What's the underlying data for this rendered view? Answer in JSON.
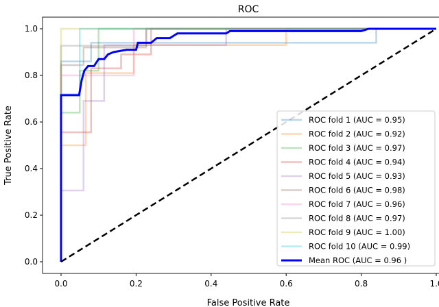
{
  "chart_data": {
    "type": "line",
    "title": "ROC",
    "xlabel": "False Positive Rate",
    "ylabel": "True Positive Rate",
    "xlim": [
      -0.05,
      1.05
    ],
    "ylim": [
      -0.05,
      1.05
    ],
    "xticks": [
      "0.0",
      "0.2",
      "0.4",
      "0.6",
      "0.8",
      "1.0"
    ],
    "yticks": [
      "0.0",
      "0.2",
      "0.4",
      "0.6",
      "0.8",
      "1.0"
    ],
    "grid": false,
    "legend_position": "lower-right",
    "series": [
      {
        "name": "ROC fold 1 (AUC = 0.95)",
        "color": "#1f77b4",
        "points": [
          [
            0,
            0
          ],
          [
            0,
            0.86
          ],
          [
            0.08,
            0.86
          ],
          [
            0.08,
            0.94
          ],
          [
            0.84,
            0.94
          ],
          [
            0.84,
            1
          ],
          [
            1,
            1
          ]
        ]
      },
      {
        "name": "ROC fold 2 (AUC = 0.92)",
        "color": "#ff7f0e",
        "points": [
          [
            0,
            0
          ],
          [
            0,
            0.5
          ],
          [
            0.066,
            0.5
          ],
          [
            0.066,
            0.81
          ],
          [
            0.194,
            0.81
          ],
          [
            0.194,
            0.93
          ],
          [
            0.6,
            0.93
          ],
          [
            0.6,
            1
          ],
          [
            1,
            1
          ]
        ]
      },
      {
        "name": "ROC fold 3 (AUC = 0.97)",
        "color": "#2ca02c",
        "points": [
          [
            0,
            0
          ],
          [
            0,
            0.64
          ],
          [
            0.05,
            0.64
          ],
          [
            0.05,
            0.82
          ],
          [
            0.1,
            0.82
          ],
          [
            0.1,
            1
          ],
          [
            1,
            1
          ]
        ]
      },
      {
        "name": "ROC fold 4 (AUC = 0.94)",
        "color": "#d62728",
        "points": [
          [
            0,
            0
          ],
          [
            0,
            0.556
          ],
          [
            0.08,
            0.556
          ],
          [
            0.08,
            0.83
          ],
          [
            0.16,
            0.83
          ],
          [
            0.16,
            0.89
          ],
          [
            0.24,
            0.89
          ],
          [
            0.24,
            1
          ],
          [
            1,
            1
          ]
        ]
      },
      {
        "name": "ROC fold 5 (AUC = 0.93)",
        "color": "#9467bd",
        "points": [
          [
            0,
            0
          ],
          [
            0,
            0.306
          ],
          [
            0.06,
            0.306
          ],
          [
            0.06,
            0.69
          ],
          [
            0.115,
            0.69
          ],
          [
            0.115,
            0.93
          ],
          [
            0.44,
            0.93
          ],
          [
            0.44,
            1
          ],
          [
            1,
            1
          ]
        ]
      },
      {
        "name": "ROC fold 6 (AUC = 0.98)",
        "color": "#8c564b",
        "points": [
          [
            0,
            0
          ],
          [
            0,
            0.844
          ],
          [
            0.06,
            0.844
          ],
          [
            0.06,
            0.92
          ],
          [
            0.227,
            0.92
          ],
          [
            0.227,
            1
          ],
          [
            1,
            1
          ]
        ]
      },
      {
        "name": "ROC fold 7 (AUC = 0.96)",
        "color": "#e377c2",
        "points": [
          [
            0,
            0
          ],
          [
            0,
            0.8
          ],
          [
            0.194,
            0.8
          ],
          [
            0.194,
            1
          ],
          [
            1,
            1
          ]
        ]
      },
      {
        "name": "ROC fold 8 (AUC = 0.97)",
        "color": "#7f7f7f",
        "points": [
          [
            0,
            0
          ],
          [
            0,
            0.927
          ],
          [
            0.227,
            0.927
          ],
          [
            0.227,
            1
          ],
          [
            1,
            1
          ]
        ]
      },
      {
        "name": "ROC fold 9 (AUC = 1.00)",
        "color": "#bcbd22",
        "points": [
          [
            0,
            0
          ],
          [
            0,
            1
          ],
          [
            1,
            1
          ]
        ]
      },
      {
        "name": "ROC fold 10 (AUC = 0.99)",
        "color": "#17becf",
        "points": [
          [
            0,
            0
          ],
          [
            0,
            0.72
          ],
          [
            0.05,
            0.72
          ],
          [
            0.05,
            1
          ],
          [
            1,
            1
          ]
        ]
      },
      {
        "name": "Mean ROC (AUC = 0.96 )",
        "color": "#0000ff",
        "mean": true,
        "points": [
          [
            0,
            0
          ],
          [
            0,
            0.715
          ],
          [
            0.048,
            0.715
          ],
          [
            0.055,
            0.78
          ],
          [
            0.062,
            0.82
          ],
          [
            0.072,
            0.84
          ],
          [
            0.088,
            0.84
          ],
          [
            0.1,
            0.87
          ],
          [
            0.115,
            0.87
          ],
          [
            0.125,
            0.89
          ],
          [
            0.14,
            0.9
          ],
          [
            0.175,
            0.91
          ],
          [
            0.2,
            0.91
          ],
          [
            0.205,
            0.94
          ],
          [
            0.24,
            0.94
          ],
          [
            0.255,
            0.96
          ],
          [
            0.29,
            0.96
          ],
          [
            0.31,
            0.98
          ],
          [
            0.44,
            0.98
          ],
          [
            0.45,
            0.99
          ],
          [
            0.8,
            0.99
          ],
          [
            0.82,
            1
          ],
          [
            1,
            1
          ]
        ]
      }
    ],
    "chance_line": {
      "points": [
        [
          0,
          0
        ],
        [
          1,
          1
        ]
      ],
      "color": "#000000",
      "style": "dashed"
    }
  }
}
